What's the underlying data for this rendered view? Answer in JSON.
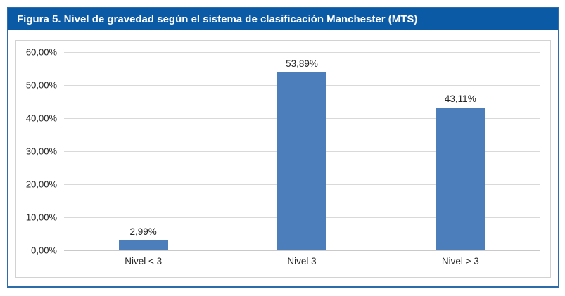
{
  "header": {
    "title": "Figura 5. Nivel de gravedad según el sistema de clasificación Manchester (MTS)"
  },
  "colors": {
    "header_bg": "#0B5AA6",
    "figure_border": "#2C6CA9",
    "panel_border": "#D2D2D2",
    "bar_fill": "#4C7EBB",
    "gridline": "#D9D9D9",
    "axis_line": "#C9C9C9",
    "label_text": "#262626"
  },
  "chart_data": {
    "type": "bar",
    "title": "Figura 5. Nivel de gravedad según el sistema de clasificación Manchester (MTS)",
    "categories": [
      "Nivel < 3",
      "Nivel 3",
      "Nivel > 3"
    ],
    "values": [
      2.99,
      53.89,
      43.11
    ],
    "value_labels": [
      "2,99%",
      "53,89%",
      "43,11%"
    ],
    "y_ticks": [
      "60,00%",
      "50,00%",
      "40,00%",
      "30,00%",
      "20,00%",
      "10,00%",
      "0,00%"
    ],
    "y_tick_values": [
      60,
      50,
      40,
      30,
      20,
      10,
      0
    ],
    "ylim": [
      0,
      60
    ],
    "xlabel": "",
    "ylabel": "",
    "grid": true,
    "legend": false,
    "bar_color": "#4C7EBB"
  }
}
